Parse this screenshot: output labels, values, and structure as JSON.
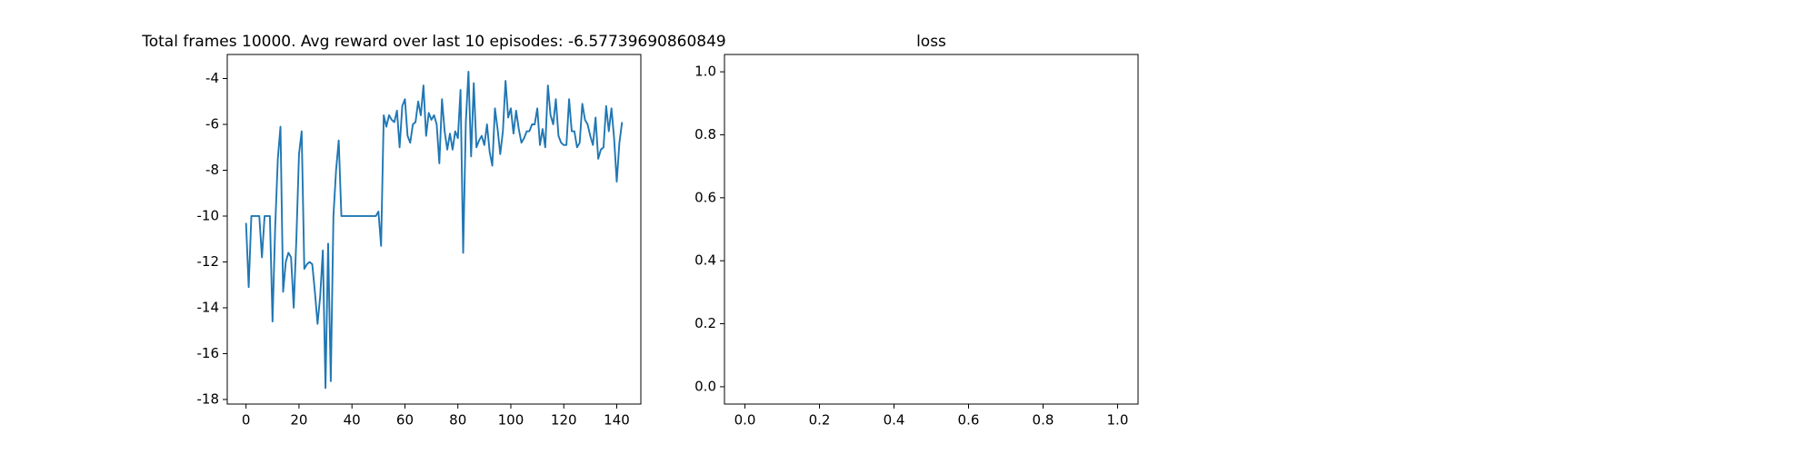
{
  "chart_data": [
    {
      "type": "line",
      "title": "Total frames 10000. Avg reward over last 10 episodes: -6.57739690860849",
      "xlim": [
        -7.1,
        149.1
      ],
      "xticks": [
        0,
        20,
        40,
        60,
        80,
        100,
        120,
        140
      ],
      "ylim": [
        -18.2,
        -2.95
      ],
      "yticks": [
        -4,
        -6,
        -8,
        -10,
        -12,
        -14,
        -16,
        -18
      ],
      "series": [
        {
          "color": "#1f77b4",
          "values": [
            -10.3,
            -13.1,
            -10,
            -10,
            -10,
            -10,
            -11.8,
            -10,
            -10,
            -10,
            -14.6,
            -10.5,
            -7.5,
            -6.1,
            -13.3,
            -12,
            -11.6,
            -11.8,
            -14,
            -11,
            -7.3,
            -6.3,
            -12.3,
            -12.1,
            -12,
            -12.1,
            -13.3,
            -14.7,
            -13.5,
            -11.5,
            -17.5,
            -11.2,
            -17.2,
            -10,
            -8,
            -6.7,
            -10,
            -10,
            -10,
            -10,
            -10,
            -10,
            -10,
            -10,
            -10,
            -10,
            -10,
            -10,
            -10,
            -10,
            -9.8,
            -11.3,
            -5.6,
            -6.1,
            -5.6,
            -5.8,
            -5.9,
            -5.4,
            -7,
            -5.2,
            -4.9,
            -6.5,
            -6.8,
            -6,
            -5.9,
            -5,
            -5.6,
            -4.3,
            -6.5,
            -5.5,
            -5.8,
            -5.6,
            -6,
            -7.7,
            -4.9,
            -6.3,
            -7.1,
            -6.4,
            -7.1,
            -6.3,
            -6.6,
            -4.5,
            -11.6,
            -5.9,
            -3.7,
            -7.4,
            -4.2,
            -7,
            -6.7,
            -6.5,
            -6.9,
            -6,
            -7.2,
            -7.8,
            -5.3,
            -6.2,
            -7.3,
            -6.3,
            -4.1,
            -5.7,
            -5.3,
            -6.4,
            -5.4,
            -6.2,
            -6.8,
            -6.6,
            -6.3,
            -6.3,
            -6,
            -6,
            -5.3,
            -6.9,
            -6.2,
            -7,
            -4.3,
            -5.6,
            -6,
            -4.9,
            -6.5,
            -6.8,
            -6.9,
            -6.9,
            -4.9,
            -6.3,
            -6.3,
            -7,
            -6.8,
            -5.1,
            -5.8,
            -6,
            -6.5,
            -6.9,
            -5.7,
            -7.5,
            -7.1,
            -7,
            -5.2,
            -6.3,
            -5.3,
            -6.6,
            -8.5,
            -6.8,
            -5.9
          ]
        }
      ]
    },
    {
      "type": "line",
      "title": "loss",
      "xlim": [
        -0.055,
        1.055
      ],
      "xticks": [
        {
          "value": 0,
          "label": "0.0"
        },
        {
          "value": 0.2,
          "label": "0.2"
        },
        {
          "value": 0.4,
          "label": "0.4"
        },
        {
          "value": 0.6,
          "label": "0.6"
        },
        {
          "value": 0.8,
          "label": "0.8"
        },
        {
          "value": 1,
          "label": "1.0"
        }
      ],
      "ylim": [
        -0.055,
        1.055
      ],
      "yticks": [
        {
          "value": 0,
          "label": "0.0"
        },
        {
          "value": 0.2,
          "label": "0.2"
        },
        {
          "value": 0.4,
          "label": "0.4"
        },
        {
          "value": 0.6,
          "label": "0.6"
        },
        {
          "value": 0.8,
          "label": "0.8"
        },
        {
          "value": 1,
          "label": "1.0"
        }
      ],
      "series": []
    }
  ]
}
